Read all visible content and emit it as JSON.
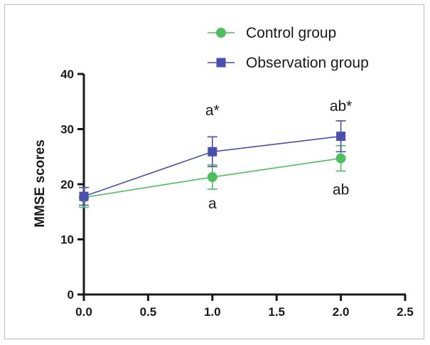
{
  "chart_data": {
    "type": "line",
    "title": "",
    "xlabel": "",
    "ylabel": "MMSE scores",
    "xlim": [
      0,
      2.5
    ],
    "ylim": [
      0,
      40
    ],
    "x_ticks": [
      "0.0",
      "0.5",
      "1.0",
      "1.5",
      "2.0",
      "2.5"
    ],
    "y_ticks": [
      "0",
      "10",
      "20",
      "30",
      "40"
    ],
    "grid": false,
    "legend_position": "top-right",
    "series": [
      {
        "name": "Control group",
        "marker": "circle",
        "color": "#4cc05c",
        "x": [
          0,
          1,
          2
        ],
        "y": [
          17.6,
          21.3,
          24.7
        ],
        "error": [
          1.8,
          2.2,
          2.3
        ]
      },
      {
        "name": "Observation group",
        "marker": "square",
        "color": "#4a4fb3",
        "x": [
          0,
          1,
          2
        ],
        "y": [
          17.8,
          25.9,
          28.7
        ],
        "error": [
          1.6,
          2.7,
          2.8
        ]
      }
    ],
    "annotations": [
      {
        "text": "a*",
        "x": 1,
        "y": 32.5
      },
      {
        "text": "a",
        "x": 1,
        "y": 15.6
      },
      {
        "text": "ab*",
        "x": 2,
        "y": 33.3
      },
      {
        "text": "ab",
        "x": 2,
        "y": 18.1
      }
    ]
  }
}
